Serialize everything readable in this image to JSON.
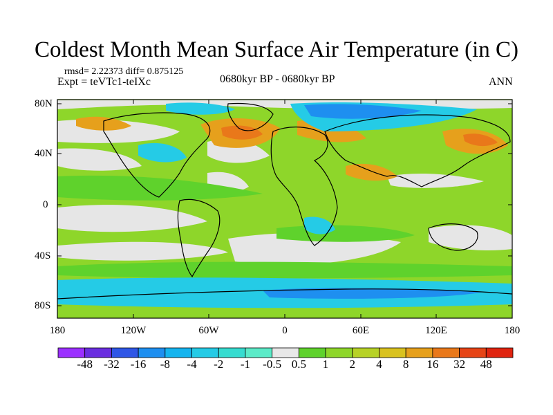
{
  "title": "Coldest Month Mean Surface Air Temperature (in C)",
  "stats": "rmsd= 2.22373 diff= 0.875125",
  "experiment": "Expt = teVTc1-teIXc",
  "period": "0680kyr BP - 0680kyr BP",
  "season": "ANN",
  "map": {
    "lat_ticks": [
      "80N",
      "40N",
      "0",
      "40S",
      "80S"
    ],
    "lon_ticks": [
      "180",
      "120W",
      "60W",
      "0",
      "60E",
      "120E",
      "180"
    ],
    "ocean_color": "#e6e6e6",
    "coast_color": "#000000"
  },
  "colorbar": {
    "labels": [
      "-48",
      "-32",
      "-16",
      "-8",
      "-4",
      "-2",
      "-1",
      "-0.5",
      "0.5",
      "1",
      "2",
      "4",
      "8",
      "16",
      "32",
      "48"
    ],
    "colors": [
      "#9b30ff",
      "#6a2ee0",
      "#2f56e6",
      "#1e8ff0",
      "#15b4ef",
      "#25cbe6",
      "#36dcd0",
      "#5bebc8",
      "#e8e8e8",
      "#5fd22c",
      "#8ed62a",
      "#b7d226",
      "#d9c21f",
      "#e6a01c",
      "#e9781a",
      "#e64416",
      "#e02410"
    ]
  }
}
